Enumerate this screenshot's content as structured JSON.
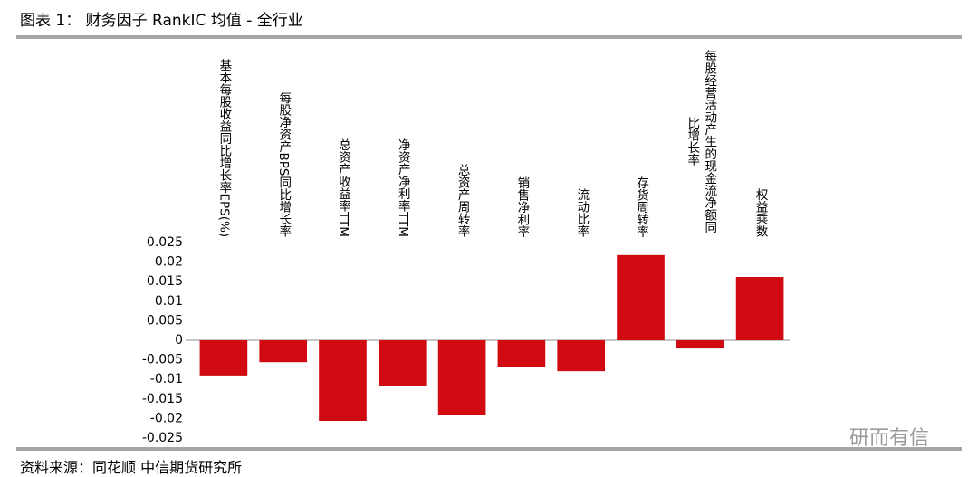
{
  "chart_data": {
    "type": "bar",
    "title": "图表 1： 财务因子 RankIC 均值 - 全行业",
    "source": "资料来源：同花顺 中信期货研究所",
    "watermark": "研而有信",
    "categories": [
      "基本每股收益同比增长率EPS(%)",
      "每股净资产BPS同比增长率",
      "总资产收益率TTM",
      "净资产净利率TTM",
      "总资产周转率",
      "销售净利率",
      "流动比率",
      "存货周转率",
      "每股经营活动产生的现金流净额同比增长率",
      "权益乘数"
    ],
    "values": [
      -0.009,
      -0.0056,
      -0.0206,
      -0.0116,
      -0.019,
      -0.0069,
      -0.0079,
      0.0218,
      -0.0021,
      0.0162
    ],
    "color": "#d10a11",
    "ylim": [
      -0.025,
      0.025
    ],
    "yticks": [
      0.025,
      0.02,
      0.015,
      0.01,
      0.005,
      0,
      -0.005,
      -0.01,
      -0.015,
      -0.02,
      -0.025
    ],
    "grid": false
  }
}
